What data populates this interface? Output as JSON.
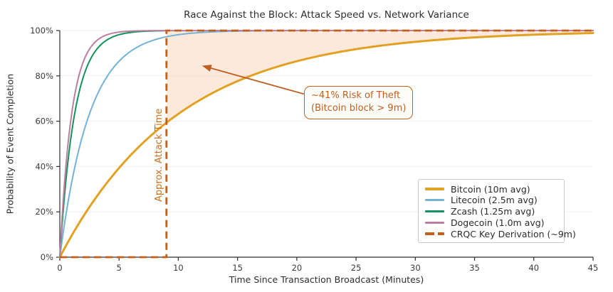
{
  "chart_data": {
    "type": "line",
    "title": "Race Against the Block: Attack Speed vs. Network Variance",
    "xlabel": "Time Since Transaction Broadcast (Minutes)",
    "ylabel": "Probability of Event Completion",
    "xlim": [
      0,
      45
    ],
    "ylim": [
      0,
      1
    ],
    "xticks": [
      0,
      5,
      10,
      15,
      20,
      25,
      30,
      35,
      40,
      45
    ],
    "ytick_values": [
      0,
      0.2,
      0.4,
      0.6,
      0.8,
      1.0
    ],
    "ytick_labels": [
      "0%",
      "20%",
      "40%",
      "60%",
      "80%",
      "100%"
    ],
    "grid": "horizontal gridlines only, very light gray",
    "legend_position": "lower right",
    "curve_model": "exponential CDF: y = 1 - exp(-x / mean_minutes)",
    "series": [
      {
        "name": "Bitcoin (10m avg)",
        "mean_minutes": 10,
        "color": "#E2A122",
        "line_width": 3
      },
      {
        "name": "Litecoin (2.5m avg)",
        "mean_minutes": 2.5,
        "color": "#74B2D8",
        "line_width": 2
      },
      {
        "name": "Zcash (1.25m avg)",
        "mean_minutes": 1.25,
        "color": "#12935C",
        "line_width": 2
      },
      {
        "name": "Dogecoin (1.0m avg)",
        "mean_minutes": 1.0,
        "color": "#BA7FA1",
        "line_width": 2
      }
    ],
    "threshold": {
      "name": "CRQC Key Derivation (~9m)",
      "x_minutes": 9,
      "color": "#C35E1B",
      "shape": "dashed step: 0% before 9 minutes, 100% after",
      "axis_label": "Approx. Attack Time"
    },
    "shaded_region": {
      "description": "area between Bitcoin curve and 100% for t > 9 minutes",
      "fill_color": "rgba(230,126,34,0.16)",
      "x_range": [
        9,
        45
      ]
    },
    "annotation": {
      "line1": "~41% Risk of Theft",
      "line2": "(Bitcoin block > 9m)",
      "color": "#BE5E1E",
      "arrow_from_xy": [
        20.6,
        0.72
      ],
      "arrow_to_xy": [
        12.0,
        0.845
      ]
    },
    "key_values": {
      "bitcoin_completion_at_9m": "59%",
      "residual_risk_at_9m": "41%"
    }
  }
}
